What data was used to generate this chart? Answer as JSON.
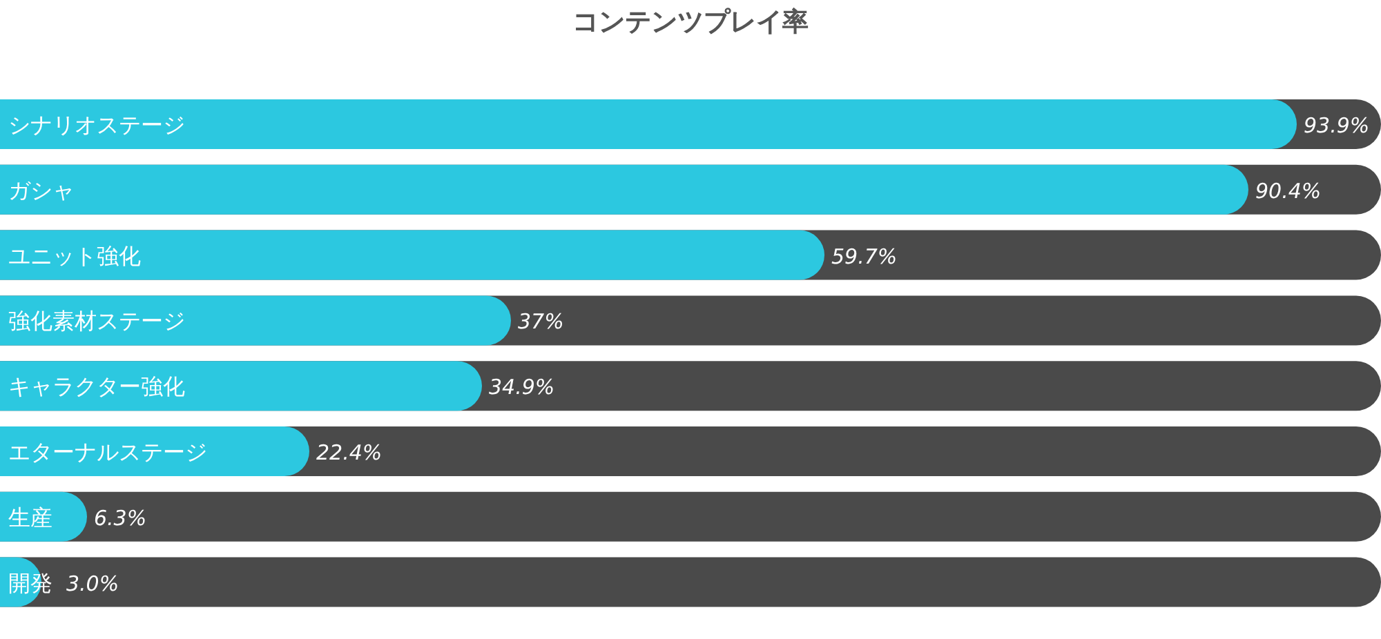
{
  "chart_data": {
    "type": "bar",
    "orientation": "horizontal",
    "title": "コンテンツプレイ率",
    "categories": [
      "シナリオステージ",
      "ガシャ",
      "ユニット強化",
      "強化素材ステージ",
      "キャラクター強化",
      "エターナルステージ",
      "生産",
      "開発"
    ],
    "values": [
      93.9,
      90.4,
      59.7,
      37,
      34.9,
      22.4,
      6.3,
      3.0
    ],
    "value_labels": [
      "93.9%",
      "90.4%",
      "59.7%",
      "37%",
      "34.9%",
      "22.4%",
      "6.3%",
      "3.0%"
    ],
    "color": "#2cc8e0",
    "xlim": [
      0,
      100
    ]
  }
}
